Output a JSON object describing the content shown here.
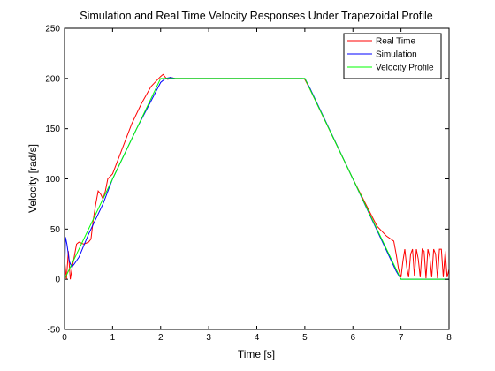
{
  "chart_data": {
    "type": "line",
    "title": "Simulation and Real Time Velocity Responses Under Trapezoidal Profile",
    "xlabel": "Time [s]",
    "ylabel": "Velocity [rad/s]",
    "xlim": [
      0,
      8
    ],
    "ylim": [
      -50,
      250
    ],
    "xticks": [
      0,
      1,
      2,
      3,
      4,
      5,
      6,
      7,
      8
    ],
    "yticks": [
      -50,
      0,
      50,
      100,
      150,
      200,
      250
    ],
    "grid": false,
    "legend_position": "top-right",
    "series": [
      {
        "name": "Real Time",
        "color": "#ff0000",
        "x": [
          0,
          0.04,
          0.08,
          0.12,
          0.16,
          0.2,
          0.25,
          0.3,
          0.35,
          0.4,
          0.45,
          0.5,
          0.55,
          0.6,
          0.65,
          0.7,
          0.75,
          0.8,
          0.85,
          0.9,
          1.0,
          1.2,
          1.4,
          1.6,
          1.8,
          2.0,
          2.05,
          2.1,
          2.15,
          2.2,
          2.3,
          2.4,
          2.5,
          3.0,
          3.5,
          4.0,
          4.5,
          4.95,
          5.0,
          5.1,
          5.5,
          6.0,
          6.5,
          6.7,
          6.85,
          6.9,
          6.95,
          7.0,
          7.04,
          7.08,
          7.12,
          7.16,
          7.2,
          7.24,
          7.28,
          7.32,
          7.36,
          7.4,
          7.44,
          7.48,
          7.52,
          7.56,
          7.6,
          7.64,
          7.68,
          7.72,
          7.76,
          7.8,
          7.84,
          7.88,
          7.92,
          7.96,
          8.0
        ],
        "y": [
          20,
          0,
          28,
          0,
          12,
          22,
          35,
          37,
          36,
          35,
          36,
          37,
          40,
          60,
          75,
          88,
          85,
          80,
          88,
          100,
          105,
          130,
          155,
          175,
          192,
          202,
          204,
          201,
          199,
          201,
          200,
          200,
          200,
          200,
          200,
          200,
          200,
          200,
          199,
          190,
          150,
          100,
          53,
          43,
          38,
          25,
          10,
          2,
          18,
          30,
          12,
          2,
          25,
          30,
          3,
          30,
          20,
          2,
          30,
          28,
          1,
          30,
          22,
          2,
          30,
          25,
          1,
          30,
          30,
          2,
          28,
          2,
          10
        ]
      },
      {
        "name": "Simulation",
        "color": "#0000ff",
        "x": [
          0,
          0.02,
          0.05,
          0.1,
          0.15,
          0.2,
          0.3,
          0.5,
          0.8,
          1.0,
          1.5,
          2.0,
          2.1,
          2.2,
          2.3,
          2.4,
          2.5,
          3.0,
          4.0,
          5.0,
          5.1,
          6.0,
          6.9,
          7.0,
          7.5,
          8.0
        ],
        "y": [
          0,
          42,
          35,
          18,
          12,
          15,
          22,
          45,
          75,
          100,
          150,
          196,
          200,
          201,
          200,
          200,
          200,
          200,
          200,
          200,
          191,
          100,
          8,
          0,
          0,
          0
        ]
      },
      {
        "name": "Velocity Profile",
        "color": "#00ff00",
        "x": [
          0,
          2.0,
          5.0,
          7.0,
          8.0
        ],
        "y": [
          0,
          200,
          200,
          0,
          0
        ]
      }
    ]
  }
}
